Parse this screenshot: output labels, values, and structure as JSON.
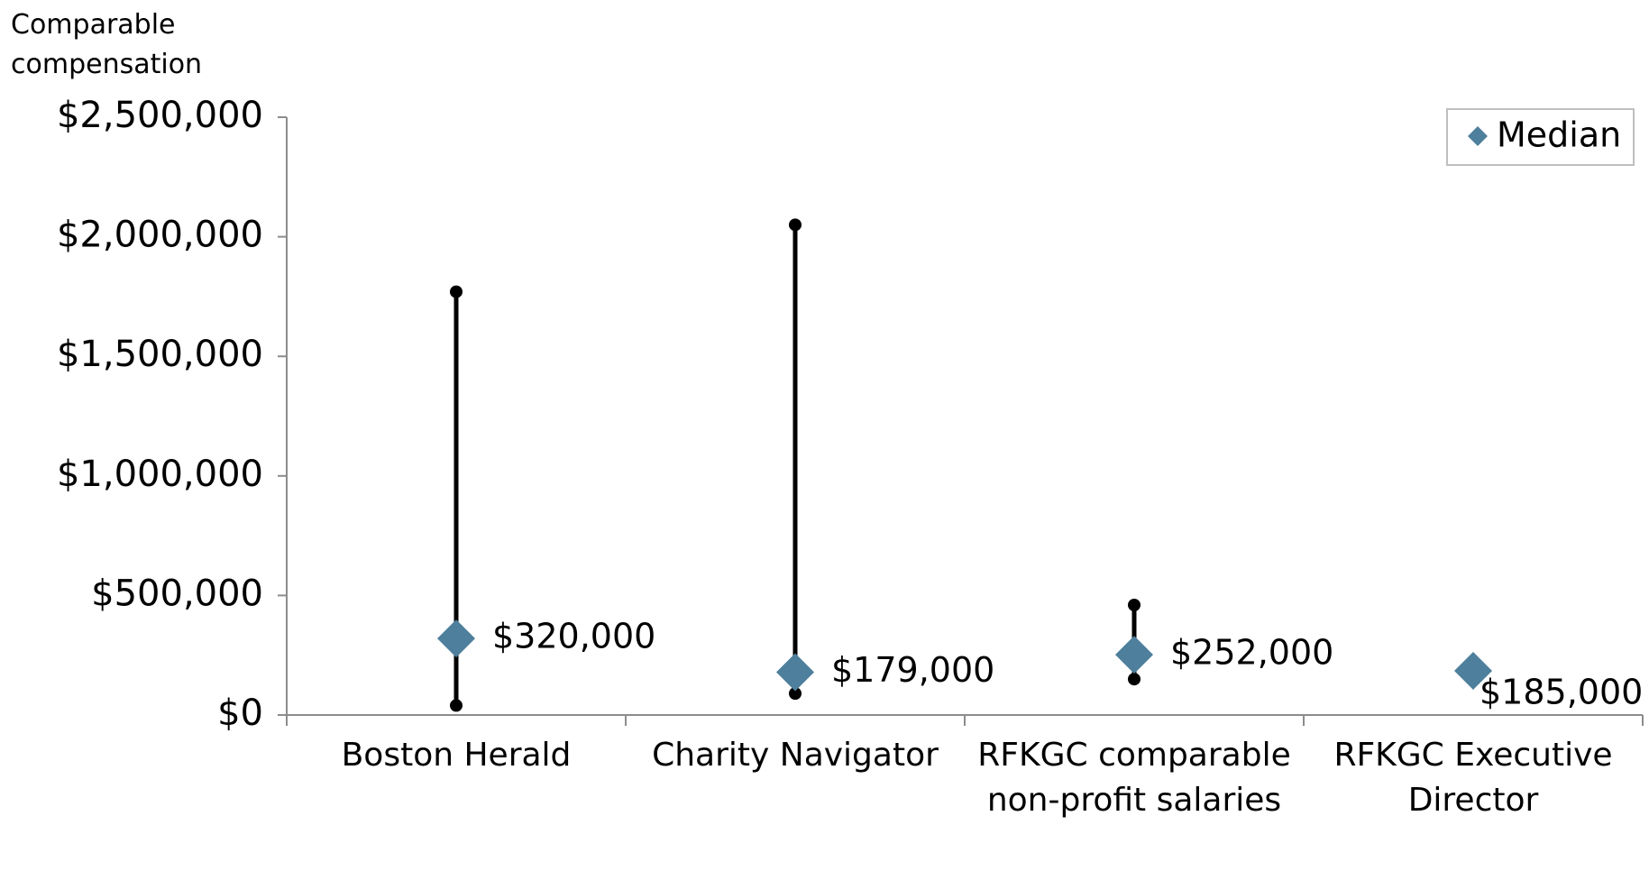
{
  "chart_data": {
    "type": "range",
    "y_label": "Comparable compensation",
    "categories": [
      "Boston Herald",
      "Charity Navigator",
      "RFKGC comparable non-profit salaries",
      "RFKGC Executive Director"
    ],
    "series": [
      {
        "name": "Median",
        "color": "#4e7f9c",
        "values": [
          320000,
          179000,
          252000,
          185000
        ],
        "value_labels": [
          "$320,000",
          "$179,000",
          "$252,000",
          "$185,000"
        ]
      }
    ],
    "high": [
      1770000,
      2050000,
      460000,
      null
    ],
    "low": [
      40000,
      90000,
      150000,
      null
    ],
    "range_color": "#000000",
    "ylim": [
      0,
      2500000
    ],
    "yticks": [
      {
        "value": 0,
        "label": "$0"
      },
      {
        "value": 500000,
        "label": "$500,000"
      },
      {
        "value": 1000000,
        "label": "$1,000,000"
      },
      {
        "value": 1500000,
        "label": "$1,500,000"
      },
      {
        "value": 2000000,
        "label": "$2,000,000"
      },
      {
        "value": 2500000,
        "label": "$2,500,000"
      }
    ],
    "legend": "top-right"
  }
}
